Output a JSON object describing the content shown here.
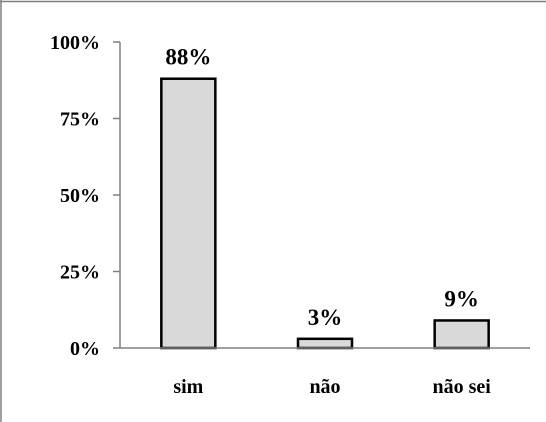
{
  "chart_data": {
    "type": "bar",
    "categories": [
      "sim",
      "não",
      "não sei"
    ],
    "values": [
      88,
      3,
      9
    ],
    "value_labels": [
      "88%",
      "3%",
      "9%"
    ],
    "ylim": [
      0,
      100
    ],
    "yticks": [
      0,
      25,
      50,
      75,
      100
    ],
    "ytick_labels": [
      "0%",
      "25%",
      "50%",
      "75%",
      "100%"
    ],
    "legend": "none",
    "grid": false,
    "colors": {
      "bar_fill": "#d9d9d9",
      "bar_stroke": "#000000",
      "axis": "#808080",
      "frame": "#808080"
    }
  }
}
